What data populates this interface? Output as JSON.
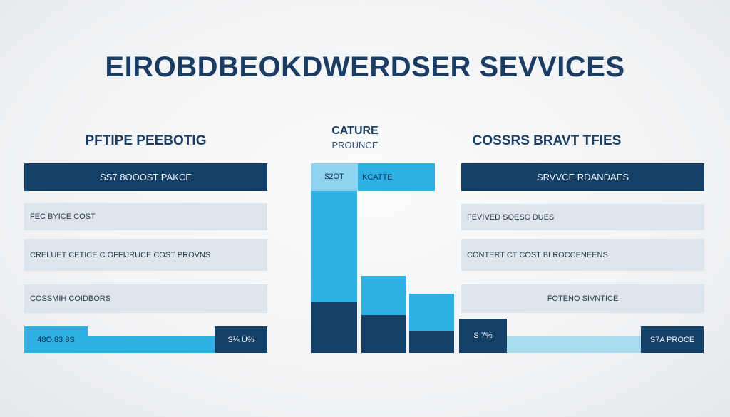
{
  "title": "EIROBDBEOKDWERDSER SEVVICES",
  "left_panel": {
    "heading": "PFTIPE PEEBOTIG",
    "header_bar": "SS7 8OOOST PAKCE",
    "rows": [
      "FEC BYICE COST",
      "CRELUET CETICE C OFFIJRUCE COST PROVNS",
      "COSSMIH COIDBORS"
    ],
    "bottom_left": "48O.83 8S",
    "bottom_right": "S¼ Ü%"
  },
  "center_panel": {
    "heading": "CATURE",
    "subheading": "PROUNCE",
    "header_left": "$2OT",
    "header_right": "KCATTE",
    "bottom_chip": "S 7%"
  },
  "right_panel": {
    "heading": "COSSRS BRAVT TFIES",
    "header_bar": "SRVVCE RDANDAES",
    "rows": [
      "FEVIVED SOESC DUES",
      "CONTERT CT COST BLROCCENEENS",
      "FOTENO SIVNTICE"
    ],
    "bottom_right": "S7A PROCE"
  },
  "colors": {
    "navy": "#143f66",
    "cyan": "#2eb0e4",
    "light_row": "#dde5ec",
    "title": "#1c3d63"
  }
}
